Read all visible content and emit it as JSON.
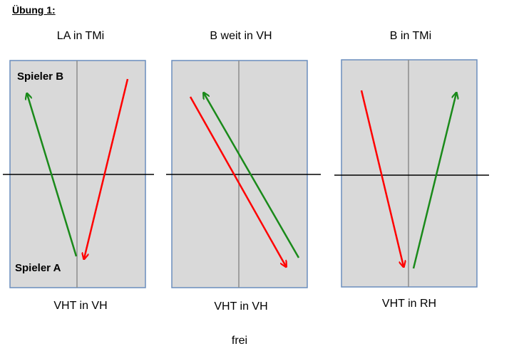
{
  "heading": "Übung 1:",
  "panels": [
    {
      "title": "LA in TMi",
      "caption": "VHT in VH",
      "player_top": "Spieler B",
      "player_bottom": "Spieler A"
    },
    {
      "title": "B weit in VH",
      "caption": "VHT in VH"
    },
    {
      "title": "B in TMi",
      "caption": "VHT in RH"
    }
  ],
  "footer": "frei",
  "colors": {
    "table_fill": "#d9d9d9",
    "table_border": "#6a8dbd",
    "center_line": "#8c8c8c",
    "net_line": "#000000",
    "green_arrow": "#1a8a1a",
    "red_arrow": "#ff0000"
  }
}
